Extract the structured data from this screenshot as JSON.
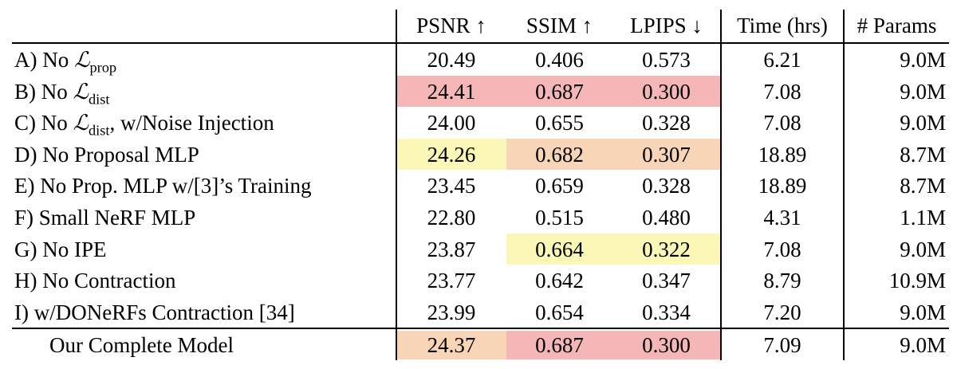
{
  "colors": {
    "red": "#f4b6b6",
    "orange": "#f7d5b6",
    "yellow": "#fbf7b6"
  },
  "table": {
    "headers": [
      "PSNR ↑",
      "SSIM ↑",
      "LPIPS ↓",
      "Time (hrs)",
      "# Params"
    ],
    "rows": [
      {
        "label_pre": "A) No ",
        "label_sym": "ℒ",
        "label_sub": "prop",
        "label_post": "",
        "psnr": "20.49",
        "ssim": "0.406",
        "lpips": "0.573",
        "time": "6.21",
        "params": "9.0M",
        "hl": [
          "",
          "",
          ""
        ]
      },
      {
        "label_pre": "B) No ",
        "label_sym": "ℒ",
        "label_sub": "dist",
        "label_post": "",
        "psnr": "24.41",
        "ssim": "0.687",
        "lpips": "0.300",
        "time": "7.08",
        "params": "9.0M",
        "hl": [
          "red",
          "red",
          "red"
        ]
      },
      {
        "label_pre": "C) No ",
        "label_sym": "ℒ",
        "label_sub": "dist",
        "label_post": ", w/Noise Injection",
        "psnr": "24.00",
        "ssim": "0.655",
        "lpips": "0.328",
        "time": "7.08",
        "params": "9.0M",
        "hl": [
          "",
          "",
          ""
        ]
      },
      {
        "label_pre": "D) No Proposal MLP",
        "label_sym": "",
        "label_sub": "",
        "label_post": "",
        "psnr": "24.26",
        "ssim": "0.682",
        "lpips": "0.307",
        "time": "18.89",
        "params": "8.7M",
        "hl": [
          "yellow",
          "orange",
          "orange"
        ]
      },
      {
        "label_pre": "E) No Prop. MLP w/[3]’s Training",
        "label_sym": "",
        "label_sub": "",
        "label_post": "",
        "psnr": "23.45",
        "ssim": "0.659",
        "lpips": "0.328",
        "time": "18.89",
        "params": "8.7M",
        "hl": [
          "",
          "",
          ""
        ]
      },
      {
        "label_pre": "F) Small NeRF MLP",
        "label_sym": "",
        "label_sub": "",
        "label_post": "",
        "psnr": "22.80",
        "ssim": "0.515",
        "lpips": "0.480",
        "time": "4.31",
        "params": "1.1M",
        "hl": [
          "",
          "",
          ""
        ]
      },
      {
        "label_pre": "G) No IPE",
        "label_sym": "",
        "label_sub": "",
        "label_post": "",
        "psnr": "23.87",
        "ssim": "0.664",
        "lpips": "0.322",
        "time": "7.08",
        "params": "9.0M",
        "hl": [
          "",
          "yellow",
          "yellow"
        ]
      },
      {
        "label_pre": "H) No Contraction",
        "label_sym": "",
        "label_sub": "",
        "label_post": "",
        "psnr": "23.77",
        "ssim": "0.642",
        "lpips": "0.347",
        "time": "8.79",
        "params": "10.9M",
        "hl": [
          "",
          "",
          ""
        ]
      },
      {
        "label_pre": "I) w/DONeRFs Contraction [34]",
        "label_sym": "",
        "label_sub": "",
        "label_post": "",
        "psnr": "23.99",
        "ssim": "0.654",
        "lpips": "0.334",
        "time": "7.20",
        "params": "9.0M",
        "hl": [
          "",
          "",
          ""
        ]
      }
    ],
    "final_row": {
      "label": "Our Complete Model",
      "psnr": "24.37",
      "ssim": "0.687",
      "lpips": "0.300",
      "time": "7.09",
      "params": "9.0M",
      "hl": [
        "orange",
        "red",
        "red"
      ]
    }
  }
}
